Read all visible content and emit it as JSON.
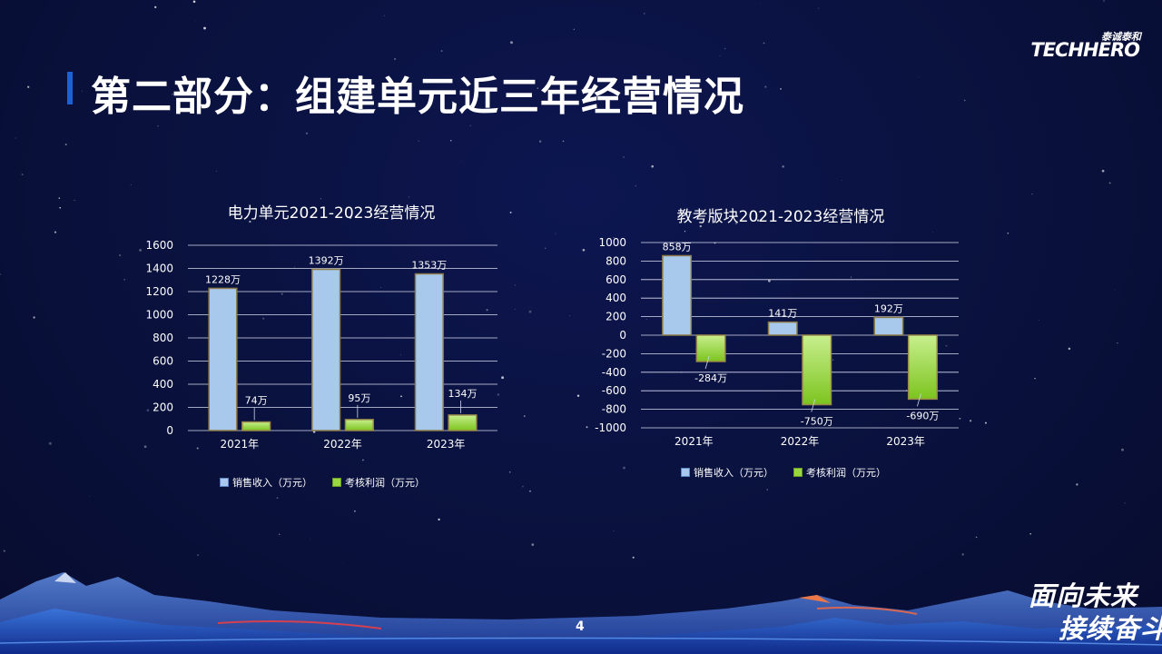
{
  "header": {
    "title": "第二部分：组建单元近三年经营情况",
    "logo_cn": "泰诚泰和",
    "logo_en": "TECHHERO"
  },
  "footer": {
    "page_number": "4",
    "slogan_line1": "面向未来",
    "slogan_line2": "接续奋斗"
  },
  "colors": {
    "sales_bar": "#a9c9ec",
    "profit_bar": "#9ad640",
    "accent": "#1f5fd6"
  },
  "chart_data": [
    {
      "type": "bar",
      "title": "电力单元2021-2023经营情况",
      "categories": [
        "2021年",
        "2022年",
        "2023年"
      ],
      "series": [
        {
          "name": "销售收入（万元）",
          "values": [
            1228,
            1392,
            1353
          ],
          "labels": [
            "1228万",
            "1392万",
            "1353万"
          ]
        },
        {
          "name": "考核利润（万元）",
          "values": [
            74,
            95,
            134
          ],
          "labels": [
            "74万",
            "95万",
            "134万"
          ]
        }
      ],
      "ylim": [
        0,
        1600
      ],
      "yticks": [
        0,
        200,
        400,
        600,
        800,
        1000,
        1200,
        1400,
        1600
      ],
      "grid": true,
      "legend": "bottom"
    },
    {
      "type": "bar",
      "title": "教考版块2021-2023经营情况",
      "categories": [
        "2021年",
        "2022年",
        "2023年"
      ],
      "series": [
        {
          "name": "销售收入（万元）",
          "values": [
            858,
            141,
            192
          ],
          "labels": [
            "858万",
            "141万",
            "192万"
          ]
        },
        {
          "name": "考核利润（万元）",
          "values": [
            -284,
            -750,
            -690
          ],
          "labels": [
            "-284万",
            "-750万",
            "-690万"
          ]
        }
      ],
      "ylim": [
        -1000,
        1000
      ],
      "yticks": [
        -1000,
        -800,
        -600,
        -400,
        -200,
        0,
        200,
        400,
        600,
        800,
        1000
      ],
      "grid": true,
      "legend": "bottom"
    }
  ]
}
